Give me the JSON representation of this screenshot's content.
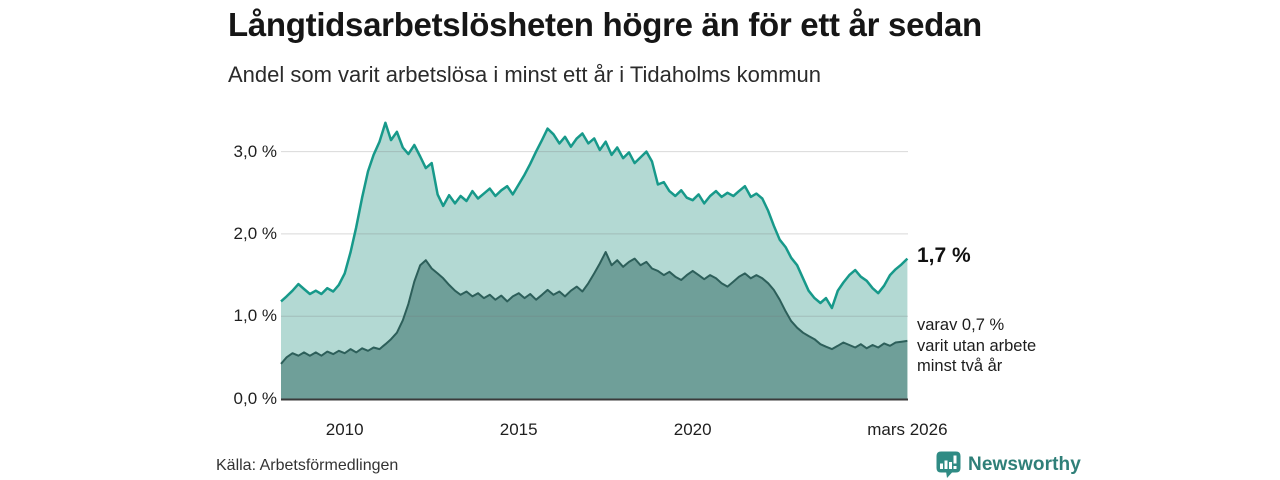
{
  "header": {
    "title": "Långtidsarbetslösheten högre än för ett år sedan",
    "subtitle": "Andel som varit arbetslösa i minst ett år i Tidaholms kommun"
  },
  "footer": {
    "source": "Källa: Arbetsförmedlingen",
    "brand": "Newsworthy"
  },
  "colors": {
    "total_line": "#17998a",
    "total_fill": "#b3d9d3",
    "two_year_line": "#2d5f5a",
    "two_year_fill": "#6f9f99",
    "gridline_overlay": "rgba(120,120,120,0.28)",
    "axis_baseline": "#3a3a3a",
    "brand_teal": "#2f8b84",
    "text_dark": "#161616"
  },
  "chart_data": {
    "type": "area",
    "title": "Långtidsarbetslösheten högre än för ett år sedan",
    "subtitle": "Andel som varit arbetslösa i minst ett år i Tidaholms kommun",
    "grid": true,
    "legend_position": "none",
    "x_axis": {
      "tick_labels": [
        "2010",
        "2015",
        "2020",
        "mars 2026"
      ],
      "tick_years": [
        2010,
        2015,
        2020,
        2026.17
      ],
      "range": [
        2008.17,
        2026.17
      ]
    },
    "y_axis": {
      "unit": "%",
      "tick_labels": [
        "0,0 %",
        "1,0 %",
        "2,0 %",
        "3,0 %"
      ],
      "ticks": [
        0,
        1,
        2,
        3
      ],
      "range": [
        0,
        3.55
      ]
    },
    "x": [
      2008.17,
      2008.33,
      2008.5,
      2008.67,
      2008.83,
      2009,
      2009.17,
      2009.33,
      2009.5,
      2009.67,
      2009.83,
      2010,
      2010.17,
      2010.33,
      2010.5,
      2010.67,
      2010.83,
      2011,
      2011.17,
      2011.33,
      2011.5,
      2011.67,
      2011.83,
      2012,
      2012.17,
      2012.33,
      2012.5,
      2012.67,
      2012.83,
      2013,
      2013.17,
      2013.33,
      2013.5,
      2013.67,
      2013.83,
      2014,
      2014.17,
      2014.33,
      2014.5,
      2014.67,
      2014.83,
      2015,
      2015.17,
      2015.33,
      2015.5,
      2015.67,
      2015.83,
      2016,
      2016.17,
      2016.33,
      2016.5,
      2016.67,
      2016.83,
      2017,
      2017.17,
      2017.33,
      2017.5,
      2017.67,
      2017.83,
      2018,
      2018.17,
      2018.33,
      2018.5,
      2018.67,
      2018.83,
      2019,
      2019.17,
      2019.33,
      2019.5,
      2019.67,
      2019.83,
      2020,
      2020.17,
      2020.33,
      2020.5,
      2020.67,
      2020.83,
      2021,
      2021.17,
      2021.33,
      2021.5,
      2021.67,
      2021.83,
      2022,
      2022.17,
      2022.33,
      2022.5,
      2022.67,
      2022.83,
      2023,
      2023.17,
      2023.33,
      2023.5,
      2023.67,
      2023.83,
      2024,
      2024.17,
      2024.33,
      2024.5,
      2024.67,
      2024.83,
      2025,
      2025.17,
      2025.33,
      2025.5,
      2025.67,
      2025.83,
      2026,
      2026.17
    ],
    "series": [
      {
        "name": "Andel som varit arbetslösa i minst ett år",
        "line_color": "#17998a",
        "fill_color": "#b3d9d3",
        "latest_value_pct": 1.7,
        "values": [
          1.18,
          1.24,
          1.31,
          1.39,
          1.33,
          1.27,
          1.31,
          1.27,
          1.34,
          1.3,
          1.38,
          1.52,
          1.78,
          2.08,
          2.44,
          2.76,
          2.96,
          3.12,
          3.35,
          3.14,
          3.24,
          3.05,
          2.97,
          3.08,
          2.94,
          2.8,
          2.86,
          2.48,
          2.34,
          2.47,
          2.37,
          2.46,
          2.4,
          2.52,
          2.43,
          2.49,
          2.55,
          2.46,
          2.53,
          2.58,
          2.48,
          2.6,
          2.72,
          2.85,
          3.0,
          3.14,
          3.28,
          3.21,
          3.1,
          3.18,
          3.06,
          3.16,
          3.22,
          3.1,
          3.16,
          3.02,
          3.12,
          2.96,
          3.05,
          2.92,
          2.99,
          2.86,
          2.93,
          3.0,
          2.88,
          2.6,
          2.63,
          2.52,
          2.46,
          2.53,
          2.44,
          2.41,
          2.48,
          2.37,
          2.46,
          2.52,
          2.45,
          2.5,
          2.46,
          2.52,
          2.58,
          2.45,
          2.49,
          2.43,
          2.28,
          2.1,
          1.93,
          1.84,
          1.71,
          1.62,
          1.46,
          1.31,
          1.22,
          1.16,
          1.22,
          1.1,
          1.31,
          1.41,
          1.5,
          1.56,
          1.48,
          1.43,
          1.34,
          1.28,
          1.37,
          1.5,
          1.57,
          1.63,
          1.7
        ]
      },
      {
        "name": "varav utan arbete minst två år",
        "line_color": "#2d5f5a",
        "fill_color": "#6f9f99",
        "latest_value_pct": 0.7,
        "values": [
          0.42,
          0.5,
          0.55,
          0.52,
          0.56,
          0.52,
          0.56,
          0.52,
          0.57,
          0.54,
          0.58,
          0.55,
          0.6,
          0.56,
          0.61,
          0.58,
          0.62,
          0.6,
          0.66,
          0.72,
          0.8,
          0.95,
          1.15,
          1.42,
          1.62,
          1.68,
          1.58,
          1.52,
          1.46,
          1.38,
          1.31,
          1.26,
          1.3,
          1.24,
          1.28,
          1.22,
          1.26,
          1.2,
          1.25,
          1.18,
          1.24,
          1.28,
          1.22,
          1.27,
          1.2,
          1.26,
          1.32,
          1.26,
          1.3,
          1.24,
          1.31,
          1.36,
          1.3,
          1.4,
          1.52,
          1.64,
          1.78,
          1.62,
          1.68,
          1.6,
          1.66,
          1.7,
          1.62,
          1.66,
          1.58,
          1.55,
          1.5,
          1.54,
          1.48,
          1.44,
          1.5,
          1.55,
          1.5,
          1.45,
          1.5,
          1.46,
          1.4,
          1.36,
          1.42,
          1.48,
          1.52,
          1.46,
          1.5,
          1.46,
          1.4,
          1.32,
          1.2,
          1.06,
          0.94,
          0.86,
          0.8,
          0.76,
          0.72,
          0.66,
          0.63,
          0.6,
          0.64,
          0.68,
          0.65,
          0.62,
          0.66,
          0.61,
          0.65,
          0.62,
          0.67,
          0.64,
          0.68,
          0.69,
          0.7
        ]
      }
    ],
    "annotations": {
      "latest_total": "1,7 %",
      "latest_two_years": [
        "varav 0,7 %",
        "varit utan arbete",
        "minst två år"
      ]
    }
  }
}
